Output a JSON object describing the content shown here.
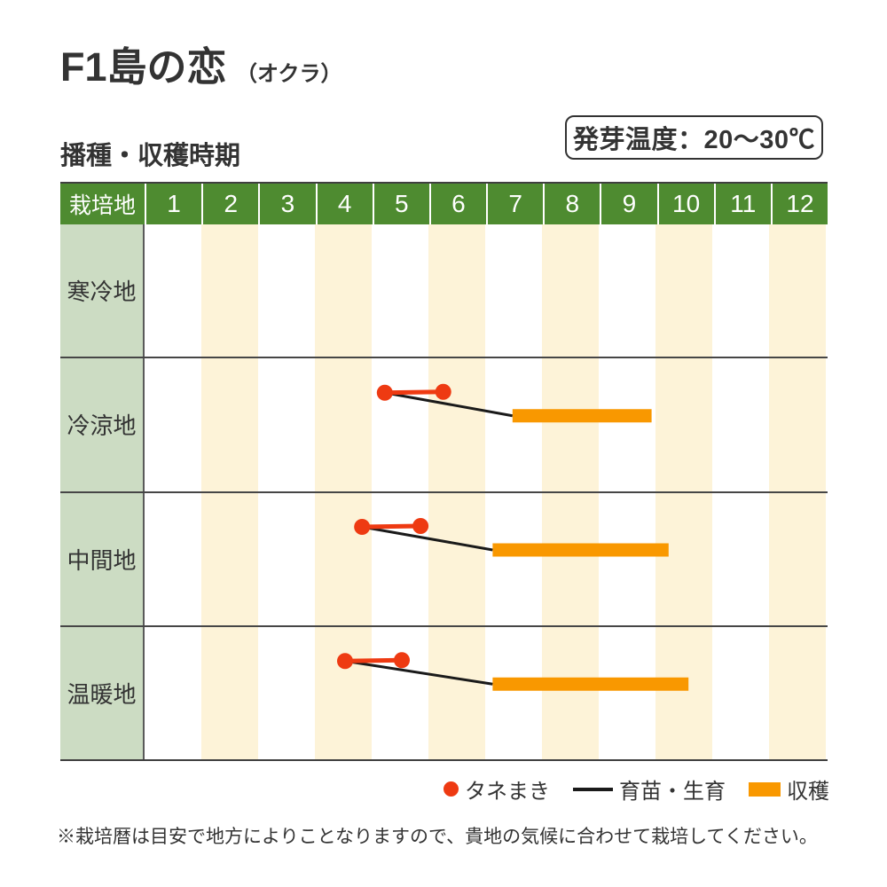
{
  "title": "F1島の恋",
  "subtitle": "（オクラ）",
  "germination_label": "発芽温度：20～30℃",
  "section_label": "播種・収穫時期",
  "legend": {
    "sow": "タネまき",
    "grow": "育苗・生育",
    "harvest": "収穫"
  },
  "footnote": "※栽培暦は目安で地方によりことなりますので、貴地の気候に合わせて栽培してください。",
  "colors": {
    "header_green": "#4e8b30",
    "label_green": "#ccdcc3",
    "stripe_cream": "#fdf3d8",
    "sow_red": "#ee3a12",
    "grow_black": "#1a1a1a",
    "harvest_orange": "#f99800",
    "text": "#333333"
  },
  "chart_data": {
    "type": "gantt",
    "title": "播種・収穫時期",
    "corner_label": "栽培地",
    "months": [
      "1",
      "2",
      "3",
      "4",
      "5",
      "6",
      "7",
      "8",
      "9",
      "10",
      "11",
      "12"
    ],
    "regions": [
      "寒冷地",
      "冷涼地",
      "中間地",
      "温暖地"
    ],
    "series": [
      {
        "region": "寒冷地",
        "sow": null,
        "harvest": null
      },
      {
        "region": "冷涼地",
        "sow": [
          5.2,
          6.23
        ],
        "harvest": [
          7.45,
          9.9
        ]
      },
      {
        "region": "中間地",
        "sow": [
          4.8,
          5.83
        ],
        "harvest": [
          7.1,
          10.2
        ]
      },
      {
        "region": "温暖地",
        "sow": [
          4.5,
          5.5
        ],
        "harvest": [
          7.1,
          10.55
        ]
      }
    ]
  }
}
